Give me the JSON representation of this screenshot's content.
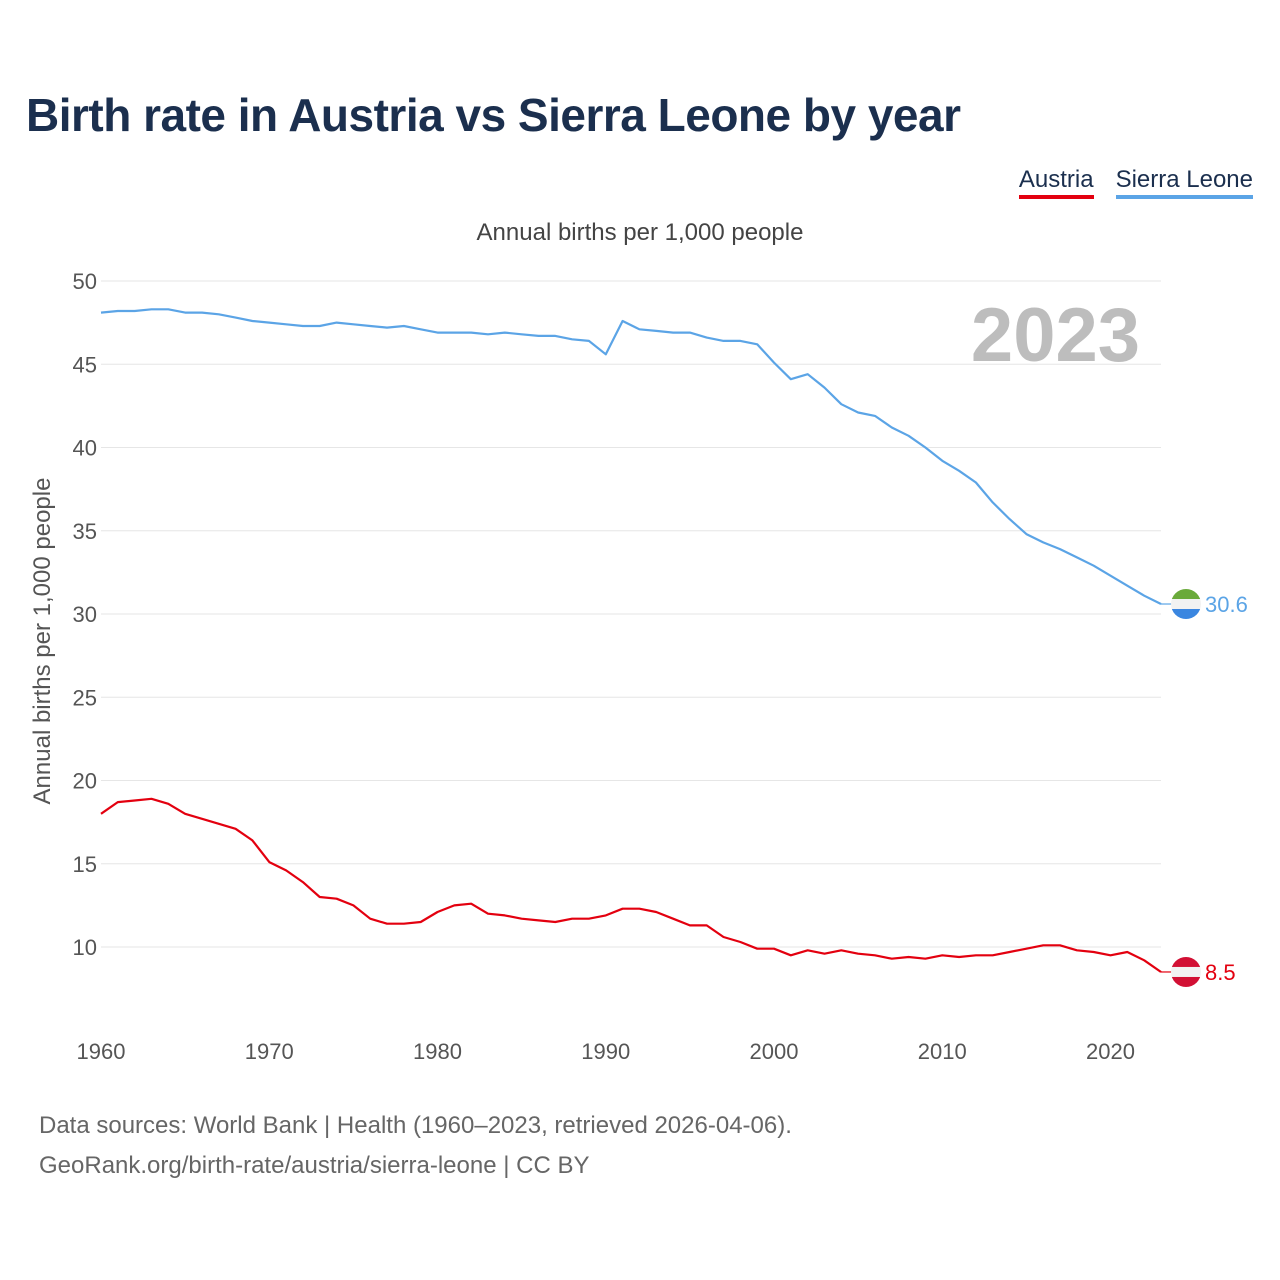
{
  "title": "Birth rate in Austria vs Sierra Leone by year",
  "legend": {
    "austria": "Austria",
    "sierra_leone": "Sierra Leone"
  },
  "colors": {
    "austria": "#e3000f",
    "sierra_leone": "#5ba4e6",
    "title": "#1b2f4e",
    "grid": "#e6e6e6"
  },
  "icons": {
    "austria": "austria-flag-icon",
    "sierra_leone": "sierra-leone-flag-icon"
  },
  "footer": {
    "line1": "Data sources: World Bank | Health (1960–2023, retrieved 2026-04-06).",
    "line2": "GeoRank.org/birth-rate/austria/sierra-leone | CC BY"
  },
  "chart_data": {
    "type": "line",
    "title": "Birth rate in Austria vs Sierra Leone by year",
    "subtitle": "Annual births per 1,000 people",
    "xlabel": "",
    "ylabel": "Annual births per 1,000 people",
    "year_label": "2023",
    "xlim": [
      1960,
      2023
    ],
    "ylim": [
      6,
      50
    ],
    "x_ticks": [
      1960,
      1970,
      1980,
      1990,
      2000,
      2010,
      2020
    ],
    "y_ticks": [
      10,
      15,
      20,
      25,
      30,
      35,
      40,
      45,
      50
    ],
    "grid": true,
    "legend_position": "top-right",
    "x": [
      1960,
      1961,
      1962,
      1963,
      1964,
      1965,
      1966,
      1967,
      1968,
      1969,
      1970,
      1971,
      1972,
      1973,
      1974,
      1975,
      1976,
      1977,
      1978,
      1979,
      1980,
      1981,
      1982,
      1983,
      1984,
      1985,
      1986,
      1987,
      1988,
      1989,
      1990,
      1991,
      1992,
      1993,
      1994,
      1995,
      1996,
      1997,
      1998,
      1999,
      2000,
      2001,
      2002,
      2003,
      2004,
      2005,
      2006,
      2007,
      2008,
      2009,
      2010,
      2011,
      2012,
      2013,
      2014,
      2015,
      2016,
      2017,
      2018,
      2019,
      2020,
      2021,
      2022,
      2023
    ],
    "series": [
      {
        "name": "Austria",
        "key": "austria",
        "end_label": "8.5",
        "values": [
          18.0,
          18.7,
          18.8,
          18.9,
          18.6,
          18.0,
          17.7,
          17.4,
          17.1,
          16.4,
          15.1,
          14.6,
          13.9,
          13.0,
          12.9,
          12.5,
          11.7,
          11.4,
          11.4,
          11.5,
          12.1,
          12.5,
          12.6,
          12.0,
          11.9,
          11.7,
          11.6,
          11.5,
          11.7,
          11.7,
          11.9,
          12.3,
          12.3,
          12.1,
          11.7,
          11.3,
          11.3,
          10.6,
          10.3,
          9.9,
          9.9,
          9.5,
          9.8,
          9.6,
          9.8,
          9.6,
          9.5,
          9.3,
          9.4,
          9.3,
          9.5,
          9.4,
          9.5,
          9.5,
          9.7,
          9.9,
          10.1,
          10.1,
          9.8,
          9.7,
          9.5,
          9.7,
          9.2,
          8.5
        ]
      },
      {
        "name": "Sierra Leone",
        "key": "sierra_leone",
        "end_label": "30.6",
        "values": [
          48.1,
          48.2,
          48.2,
          48.3,
          48.3,
          48.1,
          48.1,
          48.0,
          47.8,
          47.6,
          47.5,
          47.4,
          47.3,
          47.3,
          47.5,
          47.4,
          47.3,
          47.2,
          47.3,
          47.1,
          46.9,
          46.9,
          46.9,
          46.8,
          46.9,
          46.8,
          46.7,
          46.7,
          46.5,
          46.4,
          45.6,
          47.6,
          47.1,
          47.0,
          46.9,
          46.9,
          46.6,
          46.4,
          46.4,
          46.2,
          45.1,
          44.1,
          44.4,
          43.6,
          42.6,
          42.1,
          41.9,
          41.2,
          40.7,
          40.0,
          39.2,
          38.6,
          37.9,
          36.7,
          35.7,
          34.8,
          34.3,
          33.9,
          33.4,
          32.9,
          32.3,
          31.7,
          31.1,
          30.6
        ]
      }
    ]
  }
}
